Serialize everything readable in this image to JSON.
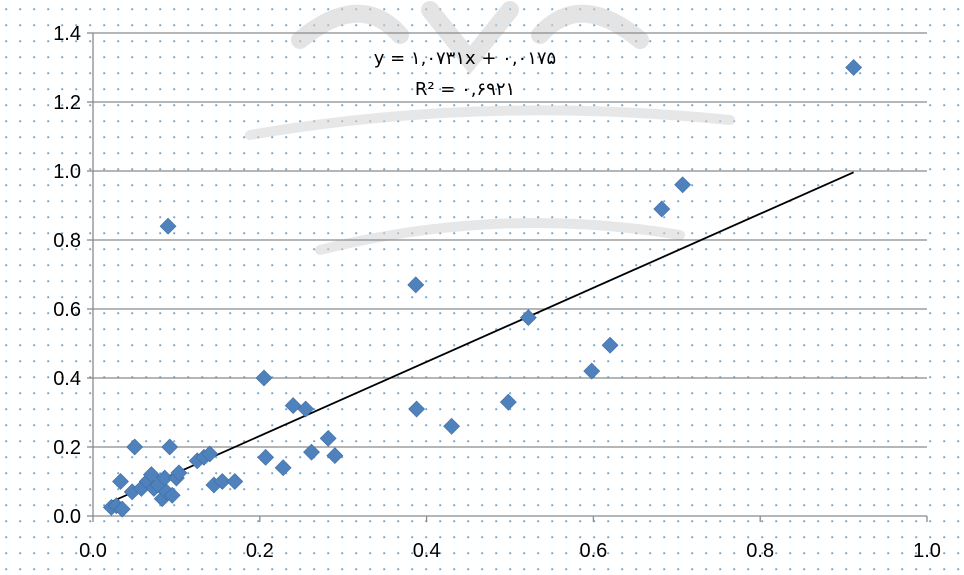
{
  "chart_data": {
    "type": "scatter",
    "title": "",
    "xlabel": "",
    "ylabel": "",
    "xlim": [
      0,
      1.0
    ],
    "ylim": [
      0,
      1.4
    ],
    "x_ticks": [
      "0.0",
      "0.2",
      "0.4",
      "0.6",
      "0.8",
      "1.0"
    ],
    "y_ticks": [
      "0.0",
      "0.2",
      "0.4",
      "0.6",
      "0.8",
      "1.0",
      "1.2",
      "1.4"
    ],
    "grid": "horizontal major solid lines plus dotted minor grid",
    "legend": "none",
    "marker": "diamond",
    "series": [
      {
        "color": "#4F81BD",
        "points": [
          [
            0.022,
            0.025
          ],
          [
            0.028,
            0.03
          ],
          [
            0.033,
            0.1
          ],
          [
            0.035,
            0.02
          ],
          [
            0.047,
            0.07
          ],
          [
            0.05,
            0.2
          ],
          [
            0.058,
            0.08
          ],
          [
            0.065,
            0.1
          ],
          [
            0.07,
            0.12
          ],
          [
            0.073,
            0.08
          ],
          [
            0.078,
            0.09
          ],
          [
            0.083,
            0.05
          ],
          [
            0.086,
            0.11
          ],
          [
            0.088,
            0.07
          ],
          [
            0.09,
            0.84
          ],
          [
            0.092,
            0.2
          ],
          [
            0.095,
            0.06
          ],
          [
            0.1,
            0.11
          ],
          [
            0.103,
            0.125
          ],
          [
            0.125,
            0.16
          ],
          [
            0.133,
            0.17
          ],
          [
            0.14,
            0.18
          ],
          [
            0.145,
            0.09
          ],
          [
            0.155,
            0.1
          ],
          [
            0.17,
            0.1
          ],
          [
            0.205,
            0.4
          ],
          [
            0.207,
            0.17
          ],
          [
            0.228,
            0.14
          ],
          [
            0.24,
            0.32
          ],
          [
            0.255,
            0.31
          ],
          [
            0.262,
            0.185
          ],
          [
            0.282,
            0.225
          ],
          [
            0.29,
            0.175
          ],
          [
            0.387,
            0.67
          ],
          [
            0.388,
            0.31
          ],
          [
            0.43,
            0.26
          ],
          [
            0.498,
            0.33
          ],
          [
            0.522,
            0.575
          ],
          [
            0.598,
            0.42
          ],
          [
            0.62,
            0.495
          ],
          [
            0.682,
            0.89
          ],
          [
            0.707,
            0.96
          ],
          [
            0.912,
            1.3
          ]
        ]
      }
    ],
    "trendline": {
      "slope": 1.0731,
      "intercept": 0.0175,
      "x_range": [
        0.02,
        0.912
      ],
      "color": "#000000"
    },
    "annotations": {
      "equation": "y = ۱,۰۷۳۱x + ۰,۰۱۷۵",
      "r_squared": "R² = ۰,۶۹۲۱"
    }
  }
}
